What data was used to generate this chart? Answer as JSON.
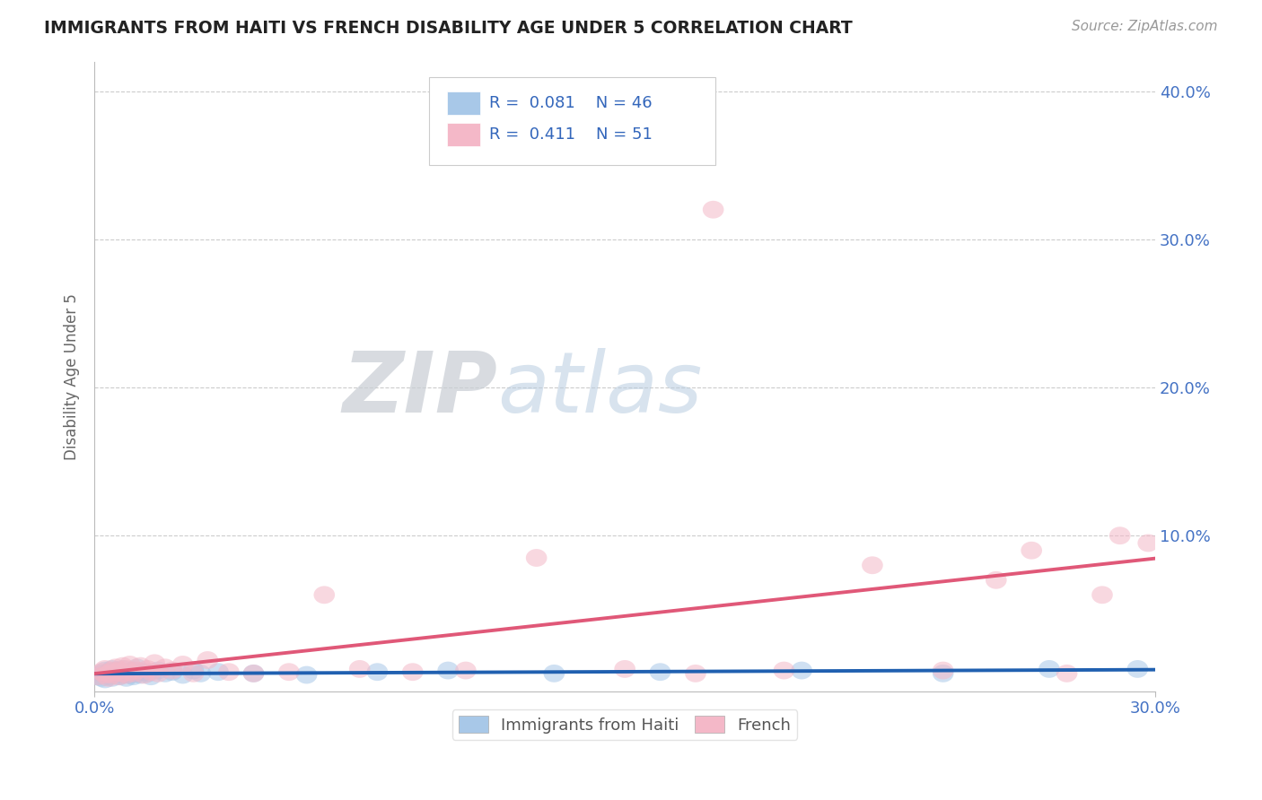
{
  "title": "IMMIGRANTS FROM HAITI VS FRENCH DISABILITY AGE UNDER 5 CORRELATION CHART",
  "source": "Source: ZipAtlas.com",
  "ylabel": "Disability Age Under 5",
  "xlim": [
    0.0,
    0.3
  ],
  "ylim": [
    -0.005,
    0.42
  ],
  "color_haiti": "#a8c8e8",
  "color_french": "#f4b8c8",
  "line_color_haiti": "#2060b0",
  "line_color_french": "#e05878",
  "legend_r1": "0.081",
  "legend_n1": "46",
  "legend_r2": "0.411",
  "legend_n2": "51",
  "haiti_x": [
    0.001,
    0.002,
    0.002,
    0.003,
    0.003,
    0.003,
    0.004,
    0.004,
    0.005,
    0.005,
    0.005,
    0.006,
    0.006,
    0.007,
    0.007,
    0.008,
    0.008,
    0.009,
    0.009,
    0.01,
    0.01,
    0.011,
    0.011,
    0.012,
    0.012,
    0.013,
    0.014,
    0.015,
    0.016,
    0.018,
    0.02,
    0.022,
    0.025,
    0.028,
    0.03,
    0.035,
    0.045,
    0.06,
    0.08,
    0.1,
    0.13,
    0.16,
    0.2,
    0.24,
    0.27,
    0.295
  ],
  "haiti_y": [
    0.005,
    0.007,
    0.004,
    0.006,
    0.009,
    0.003,
    0.008,
    0.005,
    0.007,
    0.01,
    0.004,
    0.006,
    0.009,
    0.005,
    0.008,
    0.006,
    0.01,
    0.007,
    0.004,
    0.008,
    0.006,
    0.009,
    0.005,
    0.007,
    0.011,
    0.006,
    0.008,
    0.007,
    0.005,
    0.009,
    0.007,
    0.008,
    0.006,
    0.009,
    0.007,
    0.008,
    0.007,
    0.006,
    0.008,
    0.009,
    0.007,
    0.008,
    0.009,
    0.007,
    0.01,
    0.01
  ],
  "french_x": [
    0.001,
    0.002,
    0.003,
    0.003,
    0.004,
    0.004,
    0.005,
    0.005,
    0.006,
    0.006,
    0.007,
    0.007,
    0.008,
    0.008,
    0.009,
    0.009,
    0.01,
    0.01,
    0.011,
    0.012,
    0.013,
    0.014,
    0.015,
    0.016,
    0.017,
    0.018,
    0.02,
    0.022,
    0.025,
    0.028,
    0.032,
    0.038,
    0.045,
    0.055,
    0.065,
    0.075,
    0.09,
    0.105,
    0.125,
    0.15,
    0.17,
    0.175,
    0.195,
    0.22,
    0.24,
    0.255,
    0.265,
    0.275,
    0.285,
    0.29,
    0.298
  ],
  "french_y": [
    0.005,
    0.008,
    0.006,
    0.01,
    0.007,
    0.004,
    0.009,
    0.006,
    0.008,
    0.011,
    0.005,
    0.009,
    0.007,
    0.012,
    0.006,
    0.01,
    0.008,
    0.013,
    0.007,
    0.009,
    0.012,
    0.006,
    0.01,
    0.008,
    0.014,
    0.007,
    0.011,
    0.009,
    0.013,
    0.007,
    0.016,
    0.008,
    0.007,
    0.008,
    0.06,
    0.01,
    0.008,
    0.009,
    0.085,
    0.01,
    0.007,
    0.32,
    0.009,
    0.08,
    0.009,
    0.07,
    0.09,
    0.007,
    0.06,
    0.1,
    0.095
  ]
}
